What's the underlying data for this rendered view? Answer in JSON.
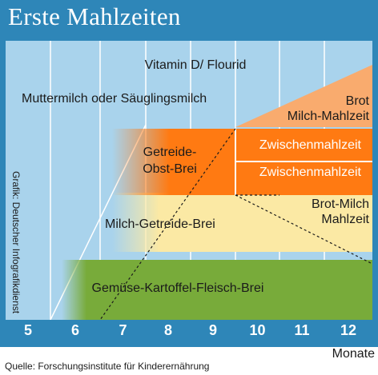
{
  "header": {
    "title": "Erste Mahlzeiten"
  },
  "credit": "Grafik: Deutscher Infografikdienst",
  "bands": {
    "vitamin": "Vitamin D/ Flourid",
    "milk": "Muttermilch oder Säuglingsmilch",
    "bread_milk_top_line1": "Brot",
    "bread_milk_top_line2": "Milch-Mahlzeit",
    "cereal_fruit_line1": "Getreide-",
    "cereal_fruit_line2": "Obst-Brei",
    "snack_1": "Zwischenmahlzeit",
    "snack_2": "Zwischenmahlzeit",
    "bread_milk_mid_line1": "Brot-Milch",
    "bread_milk_mid_line2": "Mahlzeit",
    "milk_cereal": "Milch-Getreide-Brei",
    "veg_potato_meat": "Gemüse-Kartoffel-Fleisch-Brei"
  },
  "axis": {
    "months": [
      "5",
      "6",
      "7",
      "8",
      "9",
      "10",
      "11",
      "12"
    ],
    "label": "Monate"
  },
  "source": "Quelle: Forschungsinstitute für Kinderernährung",
  "colors": {
    "frame_blue": "#2e86b8",
    "sky": "#a9d3ec",
    "orange": "#ff7a12",
    "light_orange": "#f9ab6e",
    "cream": "#fbe9a4",
    "green": "#78ab3a"
  }
}
